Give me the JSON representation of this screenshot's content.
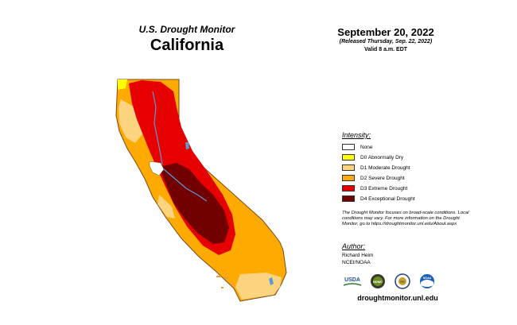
{
  "header": {
    "monitor_title": "U.S. Drought Monitor",
    "state": "California"
  },
  "date": {
    "main": "September 20, 2022",
    "released": "(Released Thursday, Sep. 22, 2022)",
    "valid": "Valid 8 a.m. EDT"
  },
  "legend": {
    "title": "Intensity:",
    "items": [
      {
        "label": "None",
        "color": "#ffffff"
      },
      {
        "label": "D0 Abnormally Dry",
        "color": "#ffff00"
      },
      {
        "label": "D1 Moderate Drought",
        "color": "#fcd37f"
      },
      {
        "label": "D2 Severe Drought",
        "color": "#ffaa00"
      },
      {
        "label": "D3 Extreme Drought",
        "color": "#e60000"
      },
      {
        "label": "D4 Exceptional Drought",
        "color": "#730000"
      }
    ]
  },
  "note": "The Drought Monitor focuses on broad-scale conditions. Local conditions may vary. For more information on the Drought Monitor, go to https://droughtmonitor.unl.edu/About.aspx",
  "author": {
    "title": "Author:",
    "name": "Richard Heim",
    "org": "NCEI/NOAA"
  },
  "logos": {
    "usda": "USDA",
    "ndmc": "NDMC",
    "doc": "DOC",
    "noaa": "NOAA"
  },
  "site": "droughtmonitor.unl.edu",
  "colors": {
    "river": "#5b9bd5",
    "boundary": "#7a4a1a"
  }
}
